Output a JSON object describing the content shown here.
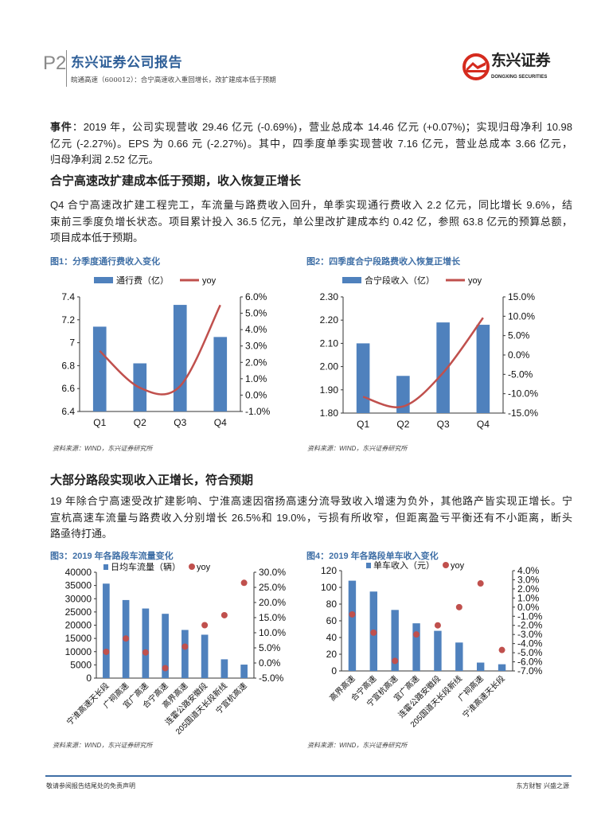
{
  "header": {
    "page": "P2",
    "report_title": "东兴证券公司报告",
    "subtitle": "皖通高速（600012）：合宁高速收入重回增长，改扩建成本低于预期",
    "logo_cn": "东兴证券",
    "logo_en": "DONGXING SECURITIES"
  },
  "event": {
    "lead": "事件",
    "lines": [
      "：2019 年，公司实现营收 29.46 亿元 (-0.69%)，营业总成本 14.46 亿元 (+0.07%)；实现归母净利 10.98",
      "亿元 (-2.27%)。EPS 为 0.66 元 (-2.27%)。其中，四季度单季实现营收 7.16 亿元，营业总成本 3.66 亿元，",
      "归母净利润 2.52 亿元。"
    ]
  },
  "section1": {
    "heading": "合宁高速改扩建成本低于预期，收入恢复正增长",
    "lines": [
      "Q4 合宁高速改扩建工程完工，车流量与路费收入回升，单季实现通行费收入 2.2 亿元，同比增长 9.6%，结",
      "束前三季度负增长状态。项目累计投入 36.5 亿元，单公里改扩建成本约 0.42 亿，参照 63.8 亿元的预算总额，",
      "项目成本低于预期。"
    ]
  },
  "section2": {
    "heading": "大部分路段实现收入正增长，符合预期",
    "lines": [
      "19 年除合宁高速受改扩建影响、宁淮高速因宿扬高速分流导致收入增速为负外，其他路产皆实现正增长。宁",
      "宣杭高速车流量与路费收入分别增长 26.5%和 19.0%，亏损有所收窄，但距离盈亏平衡还有不小距离，断头",
      "路亟待打通。"
    ]
  },
  "source_note": "资料来源：WIND，东兴证券研究所",
  "footer": {
    "left": "敬请参阅报告结尾处的免责声明",
    "right": "东方财智 兴盛之源"
  },
  "colors": {
    "bar": "#4f81bd",
    "line": "#c0504d",
    "title_blue": "#3f6fa6",
    "header_blue": "#2f5f98"
  },
  "chart_data": [
    {
      "id": "fig1",
      "type": "bar+line",
      "title": "图1：分季度通行费收入变化",
      "categories": [
        "Q1",
        "Q2",
        "Q3",
        "Q4"
      ],
      "series": [
        {
          "name": "通行费（亿）",
          "type": "bar",
          "axis": "left",
          "values": [
            7.14,
            6.82,
            7.33,
            7.05
          ]
        },
        {
          "name": "yoy",
          "type": "line",
          "axis": "right",
          "values": [
            2.7,
            0.45,
            0.55,
            5.5
          ]
        }
      ],
      "ylim": [
        6.4,
        7.4
      ],
      "yticks": [
        "6.4",
        "6.6",
        "6.8",
        "7",
        "7.2",
        "7.4"
      ],
      "ytick_values": [
        6.4,
        6.6,
        6.8,
        7.0,
        7.2,
        7.4
      ],
      "y2lim": [
        -1,
        6
      ],
      "y2ticks": [
        "-1.0%",
        "0.0%",
        "1.0%",
        "2.0%",
        "3.0%",
        "4.0%",
        "5.0%",
        "6.0%"
      ],
      "y2tick_values": [
        -1,
        0,
        1,
        2,
        3,
        4,
        5,
        6
      ],
      "legend": "top"
    },
    {
      "id": "fig2",
      "type": "bar+line",
      "title": "图2：四季度合宁段路费收入恢复正增长",
      "categories": [
        "Q1",
        "Q2",
        "Q3",
        "Q4"
      ],
      "series": [
        {
          "name": "合宁段收入（亿）",
          "type": "bar",
          "axis": "left",
          "values": [
            2.1,
            1.96,
            2.19,
            2.18
          ]
        },
        {
          "name": "yoy",
          "type": "line",
          "axis": "right",
          "values": [
            -10.8,
            -13.3,
            -4.6,
            9.6
          ]
        }
      ],
      "ylim": [
        1.8,
        2.3
      ],
      "yticks": [
        "1.80",
        "1.90",
        "2.00",
        "2.10",
        "2.20",
        "2.30"
      ],
      "ytick_values": [
        1.8,
        1.9,
        2.0,
        2.1,
        2.2,
        2.3
      ],
      "y2lim": [
        -15,
        15
      ],
      "y2ticks": [
        "-15.0%",
        "-10.0%",
        "-5.0%",
        "0.0%",
        "5.0%",
        "10.0%",
        "15.0%"
      ],
      "y2tick_values": [
        -15,
        -10,
        -5,
        0,
        5,
        10,
        15
      ],
      "legend": "top"
    },
    {
      "id": "fig3",
      "type": "bar+scatter",
      "title": "图3：2019 年各路段车流量变化",
      "categories": [
        "宁淮高速天长段",
        "广祠高速",
        "宜广高速",
        "合宁高速",
        "高界高速",
        "连霍公路安徽段",
        "205国道天长段新线",
        "宁宣杭高速"
      ],
      "series": [
        {
          "name": "日均车流量（辆）",
          "type": "bar",
          "axis": "left",
          "values": [
            35700,
            29500,
            26300,
            24300,
            18200,
            16400,
            7100,
            5100
          ]
        },
        {
          "name": "yoy",
          "type": "scatter",
          "axis": "right",
          "values": [
            3.7,
            8.1,
            3.5,
            -1.7,
            5.4,
            12.5,
            15.8,
            26.5
          ]
        }
      ],
      "ylim": [
        0,
        40000
      ],
      "yticks": [
        "0",
        "5000",
        "10000",
        "15000",
        "20000",
        "25000",
        "30000",
        "35000",
        "40000"
      ],
      "ytick_values": [
        0,
        5000,
        10000,
        15000,
        20000,
        25000,
        30000,
        35000,
        40000
      ],
      "y2lim": [
        -5,
        30
      ],
      "y2ticks": [
        "-5.0%",
        "0.0%",
        "5.0%",
        "10.0%",
        "15.0%",
        "20.0%",
        "25.0%",
        "30.0%"
      ],
      "y2tick_values": [
        -5,
        0,
        5,
        10,
        15,
        20,
        25,
        30
      ],
      "legend": "top"
    },
    {
      "id": "fig4",
      "type": "bar+scatter",
      "title": "图4：2019 年各路段单车收入变化",
      "categories": [
        "高界高速",
        "合宁高速",
        "宁宣杭高速",
        "宜广高速",
        "连霍公路安徽段",
        "205国道天长段新线",
        "广祠高速",
        "宁淮高速天长段"
      ],
      "series": [
        {
          "name": "单车收入（元）",
          "type": "bar",
          "axis": "left",
          "values": [
            108,
            95,
            73,
            57,
            48,
            34,
            10,
            8
          ]
        },
        {
          "name": "yoy",
          "type": "scatter",
          "axis": "right",
          "values": [
            -0.8,
            -2.8,
            -5.9,
            -3.0,
            -2.0,
            0.0,
            2.6,
            -4.7
          ]
        }
      ],
      "ylim": [
        0,
        120
      ],
      "yticks": [
        "0",
        "20",
        "40",
        "60",
        "80",
        "100",
        "120"
      ],
      "ytick_values": [
        0,
        20,
        40,
        60,
        80,
        100,
        120
      ],
      "y2lim": [
        -7,
        4
      ],
      "y2ticks": [
        "-7.0%",
        "-6.0%",
        "-5.0%",
        "-4.0%",
        "-3.0%",
        "-2.0%",
        "-1.0%",
        "0.0%",
        "1.0%",
        "2.0%",
        "3.0%",
        "4.0%"
      ],
      "y2tick_values": [
        -7,
        -6,
        -5,
        -4,
        -3,
        -2,
        -1,
        0,
        1,
        2,
        3,
        4
      ],
      "legend": "top"
    }
  ]
}
